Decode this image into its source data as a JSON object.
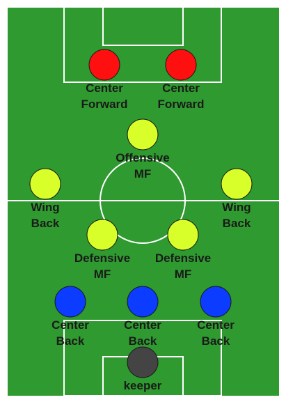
{
  "colors": {
    "border": "#ffffff",
    "pitch": "#2f9a2f",
    "lines": "#ffffff",
    "forward": "#ff1010",
    "midfield": "#d9ff2a",
    "defense": "#0b3cff",
    "keeper": "#444444"
  },
  "players": [
    {
      "id": "cf-left",
      "role": "forward",
      "label": [
        "Center",
        "Forward"
      ]
    },
    {
      "id": "cf-right",
      "role": "forward",
      "label": [
        "Center",
        "Forward"
      ]
    },
    {
      "id": "om",
      "role": "midfield",
      "label": [
        "Offensive",
        "MF"
      ]
    },
    {
      "id": "wb-left",
      "role": "midfield",
      "label": [
        "Wing",
        "Back"
      ]
    },
    {
      "id": "wb-right",
      "role": "midfield",
      "label": [
        "Wing",
        "Back"
      ]
    },
    {
      "id": "dm-left",
      "role": "midfield",
      "label": [
        "Defensive",
        "MF"
      ]
    },
    {
      "id": "dm-right",
      "role": "midfield",
      "label": [
        "Defensive",
        "MF"
      ]
    },
    {
      "id": "cb-left",
      "role": "defense",
      "label": [
        "Center",
        "Back"
      ]
    },
    {
      "id": "cb-center",
      "role": "defense",
      "label": [
        "Center",
        "Back"
      ]
    },
    {
      "id": "cb-right",
      "role": "defense",
      "label": [
        "Center",
        "Back"
      ]
    },
    {
      "id": "gk",
      "role": "keeper",
      "label": [
        "keeper"
      ]
    }
  ]
}
